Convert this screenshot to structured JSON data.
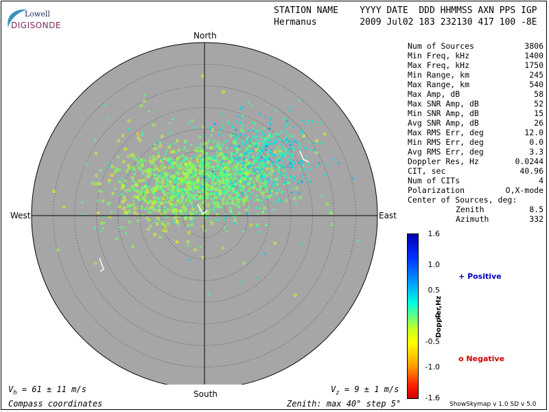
{
  "logo": {
    "line1": "Lowell",
    "line2": "DIGISONDE"
  },
  "header": {
    "row1": "STATION NAME    YYYY DATE  DDD HHMMSS AXN PPS IGP",
    "row2": "Hermanus        2009 Jul02 183 232130 417 100 -8E"
  },
  "stats": [
    {
      "label": "Num of Sources",
      "value": "3806"
    },
    {
      "label": "Min Freq, kHz",
      "value": "1400"
    },
    {
      "label": "Max Freq, kHz",
      "value": "1750"
    },
    {
      "label": "Min Range, km",
      "value": "245"
    },
    {
      "label": "Max Range, km",
      "value": "540"
    },
    {
      "label": "Max Amp, dB",
      "value": "58"
    },
    {
      "label": "Max SNR Amp, dB",
      "value": "52"
    },
    {
      "label": "Min SNR Amp, dB",
      "value": "15"
    },
    {
      "label": "Avg SNR Amp, dB",
      "value": "26"
    },
    {
      "label": "Max RMS Err, deg",
      "value": "12.0"
    },
    {
      "label": "Min RMS Err, deg",
      "value": "0.0"
    },
    {
      "label": "Avg RMS Err, deg",
      "value": "3.3"
    },
    {
      "label": "Doppler Res, Hz",
      "value": "0.0244"
    },
    {
      "label": "CIT, sec",
      "value": "40.96"
    },
    {
      "label": "Num of CITs",
      "value": "4"
    },
    {
      "label": "Polarization",
      "value": "O,X-mode"
    }
  ],
  "center": {
    "title": "Center of Sources, deg:",
    "zenith_label": "Zenith",
    "zenith_value": "8.5",
    "azimuth_label": "Azimuth",
    "azimuth_value": "332"
  },
  "compass": {
    "north": "North",
    "south": "South",
    "east": "East",
    "west": "West"
  },
  "footer": {
    "vh": "V",
    "vh_sub": "h",
    "vh_rest": " = 61 ± 11 m/s",
    "vz": "V",
    "vz_sub": "z",
    "vz_rest": " = 9 ± 1 m/s",
    "coords": "Compass coordinates",
    "zenith": "Zenith: max 40°  step 5°",
    "version": "ShowSkymap v 1.0   SD v 5.0"
  },
  "colorbar": {
    "title": "Doppler,Hz",
    "ticks": [
      "1.6",
      "1.0",
      "0.5",
      "0",
      "-0.5",
      "-1.0",
      "-1.6"
    ]
  },
  "legend": {
    "positive_symbol": "+",
    "positive": "Positive",
    "positive_color": "#0000c0",
    "negative_symbol": "o",
    "negative": "Negative",
    "negative_color": "#d00000"
  },
  "colors": {
    "plot_bg": "#a6a6a6",
    "ring": "#555555"
  },
  "chart_data": {
    "type": "scatter",
    "title": "",
    "zenith_max_deg": 40,
    "zenith_step_deg": 5,
    "num_sources": 3806,
    "cluster_center": {
      "zenith_deg": 8.5,
      "azimuth_deg": 332
    },
    "doppler_range_hz": [
      -1.6,
      1.6
    ],
    "series": [
      {
        "name": "Positive",
        "marker": "+"
      },
      {
        "name": "Negative",
        "marker": "o"
      }
    ]
  }
}
